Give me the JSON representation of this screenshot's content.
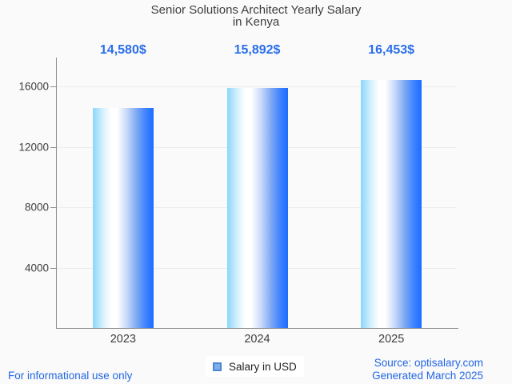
{
  "title": {
    "line1": "Senior Solutions Architect Yearly Salary",
    "line2": "in Kenya"
  },
  "chart_data": {
    "type": "bar",
    "title": "Senior Solutions Architect Yearly Salary in Kenya",
    "categories": [
      "2023",
      "2024",
      "2025"
    ],
    "values": [
      14580,
      15892,
      16453
    ],
    "value_labels": [
      "14,580$",
      "15,892$",
      "16,453$"
    ],
    "yticks": [
      4000,
      8000,
      12000,
      16000
    ],
    "ylim": [
      0,
      17930
    ],
    "xlabel": "",
    "ylabel": "",
    "grid": true,
    "legend_position": "bottom",
    "series": [
      {
        "name": "Salary in USD",
        "values": [
          14580,
          15892,
          16453
        ]
      }
    ]
  },
  "legend": {
    "label": "Salary in USD"
  },
  "footer": {
    "disclaimer": "For informational use only",
    "source": "Source: optisalary.com",
    "generated": "Generated March 2025"
  },
  "colors": {
    "background": "#fafafa",
    "value_label_blue": "#2a6ee9",
    "footer_blue": "#2266e3",
    "bar_gradient_left": "#8cd6fb",
    "bar_gradient_mid": "#ffffff",
    "bar_gradient_right": "#1c6dff",
    "legend_swatch_fill": "#7fb0ea",
    "legend_swatch_border": "#4e86d6",
    "axis_gray": "#8f8f8f",
    "grid_gray": "#ececec",
    "text_dark": "#3d3d3d"
  }
}
